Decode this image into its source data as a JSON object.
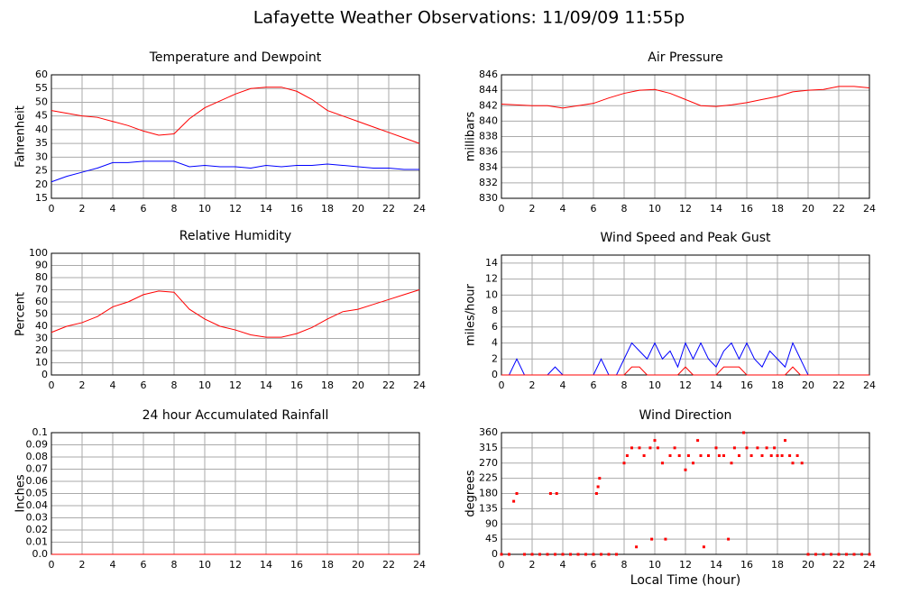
{
  "title": "Lafayette Weather Observations: 11/09/09 11:55p",
  "chart_data": [
    {
      "type": "line",
      "title": "Temperature and Dewpoint",
      "ylabel": "Fahrenheit",
      "x": [
        0,
        1,
        2,
        3,
        4,
        5,
        6,
        7,
        8,
        9,
        10,
        11,
        12,
        13,
        14,
        15,
        16,
        17,
        18,
        19,
        20,
        21,
        22,
        23,
        24
      ],
      "series": [
        {
          "color": "#ff0000",
          "values": [
            47,
            46,
            45,
            44.5,
            43,
            41.5,
            39.5,
            38,
            38.5,
            44,
            48,
            50.5,
            53,
            55,
            55.5,
            55.5,
            54,
            51,
            47,
            45,
            43,
            41,
            39,
            37,
            35
          ]
        },
        {
          "color": "#0000ff",
          "values": [
            21,
            23,
            24.5,
            26,
            28,
            28,
            28.5,
            28.5,
            28.5,
            26.5,
            27,
            26.5,
            26.5,
            26,
            27,
            26.5,
            27,
            27,
            27.5,
            27,
            26.5,
            26,
            26,
            25.5,
            25.5
          ]
        }
      ],
      "xlim": [
        0,
        24
      ],
      "xticks": [
        0,
        2,
        4,
        6,
        8,
        10,
        12,
        14,
        16,
        18,
        20,
        22,
        24
      ],
      "ylim": [
        15,
        60
      ],
      "yticks": [
        15,
        20,
        25,
        30,
        35,
        40,
        45,
        50,
        55,
        60
      ],
      "grid": true
    },
    {
      "type": "line",
      "title": "Air Pressure",
      "ylabel": "millibars",
      "x": [
        0,
        1,
        2,
        3,
        4,
        5,
        6,
        7,
        8,
        9,
        10,
        11,
        12,
        13,
        14,
        15,
        16,
        17,
        18,
        19,
        20,
        21,
        22,
        23,
        24
      ],
      "series": [
        {
          "color": "#ff0000",
          "values": [
            842.2,
            842.1,
            842,
            842,
            841.7,
            842,
            842.3,
            843,
            843.6,
            844,
            844.1,
            843.6,
            842.8,
            842,
            841.9,
            842.1,
            842.4,
            842.8,
            843.2,
            843.8,
            844,
            844.1,
            844.5,
            844.5,
            844.3
          ]
        }
      ],
      "xlim": [
        0,
        24
      ],
      "xticks": [
        0,
        2,
        4,
        6,
        8,
        10,
        12,
        14,
        16,
        18,
        20,
        22,
        24
      ],
      "ylim": [
        830,
        846
      ],
      "yticks": [
        830,
        832,
        834,
        836,
        838,
        840,
        842,
        844,
        846
      ],
      "grid": true
    },
    {
      "type": "line",
      "title": "Relative Humidity",
      "ylabel": "Percent",
      "x": [
        0,
        1,
        2,
        3,
        4,
        5,
        6,
        7,
        8,
        9,
        10,
        11,
        12,
        13,
        14,
        15,
        16,
        17,
        18,
        19,
        20,
        21,
        22,
        23,
        24
      ],
      "series": [
        {
          "color": "#ff0000",
          "values": [
            35,
            40,
            43,
            48,
            56,
            60,
            66,
            69,
            68,
            54,
            46,
            40,
            37,
            33,
            31,
            31,
            34,
            39,
            46,
            52,
            54,
            58,
            62,
            66,
            70
          ]
        }
      ],
      "xlim": [
        0,
        24
      ],
      "xticks": [
        0,
        2,
        4,
        6,
        8,
        10,
        12,
        14,
        16,
        18,
        20,
        22,
        24
      ],
      "ylim": [
        0,
        100
      ],
      "yticks": [
        0,
        10,
        20,
        30,
        40,
        50,
        60,
        70,
        80,
        90,
        100
      ],
      "grid": true
    },
    {
      "type": "line",
      "title": "Wind Speed and Peak Gust",
      "ylabel": "miles/hour",
      "x": [
        0,
        0.5,
        1,
        1.5,
        2,
        2.5,
        3,
        3.5,
        4,
        4.5,
        5,
        5.5,
        6,
        6.5,
        7,
        7.5,
        8,
        8.5,
        9,
        9.5,
        10,
        10.5,
        11,
        11.5,
        12,
        12.5,
        13,
        13.5,
        14,
        14.5,
        15,
        15.5,
        16,
        16.5,
        17,
        17.5,
        18,
        18.5,
        19,
        19.5,
        20,
        20.5,
        21,
        21.5,
        22,
        22.5,
        23,
        23.5,
        24
      ],
      "series": [
        {
          "color": "#0000ff",
          "values": [
            0,
            0,
            2,
            0,
            0,
            0,
            0,
            1,
            0,
            0,
            0,
            0,
            0,
            2,
            0,
            0,
            2,
            4,
            3,
            2,
            4,
            2,
            3,
            1,
            4,
            2,
            4,
            2,
            1,
            3,
            4,
            2,
            4,
            2,
            1,
            3,
            2,
            1,
            4,
            2,
            0,
            0,
            0,
            0,
            0,
            0,
            0,
            0,
            0
          ]
        },
        {
          "color": "#ff0000",
          "values": [
            0,
            0,
            0,
            0,
            0,
            0,
            0,
            0,
            0,
            0,
            0,
            0,
            0,
            0,
            0,
            0,
            0,
            1,
            1,
            0,
            0,
            0,
            0,
            0,
            1,
            0,
            0,
            0,
            0,
            1,
            1,
            1,
            0,
            0,
            0,
            0,
            0,
            0,
            1,
            0,
            0,
            0,
            0,
            0,
            0,
            0,
            0,
            0,
            0
          ]
        }
      ],
      "xlim": [
        0,
        24
      ],
      "xticks": [
        0,
        2,
        4,
        6,
        8,
        10,
        12,
        14,
        16,
        18,
        20,
        22,
        24
      ],
      "ylim": [
        0,
        15
      ],
      "yticks": [
        0,
        2,
        4,
        6,
        8,
        10,
        12,
        14
      ],
      "grid": true
    },
    {
      "type": "line",
      "title": "24 hour Accumulated Rainfall",
      "ylabel": "Inches",
      "x": [
        0,
        24
      ],
      "series": [
        {
          "color": "#ff0000",
          "values": [
            0,
            0
          ]
        }
      ],
      "xlim": [
        0,
        24
      ],
      "xticks": [
        0,
        2,
        4,
        6,
        8,
        10,
        12,
        14,
        16,
        18,
        20,
        22,
        24
      ],
      "ylim": [
        0,
        0.1
      ],
      "yticks": [
        {
          "value": 0,
          "label": "0.0"
        },
        0.01,
        0.02,
        0.03,
        0.04,
        0.05,
        0.06,
        0.07,
        0.08,
        0.09,
        0.1
      ],
      "grid": true
    },
    {
      "type": "scatter",
      "title": "Wind Direction",
      "ylabel": "degrees",
      "xlabel": "Local Time (hour)",
      "x": [
        0,
        0.5,
        0.8,
        1,
        1.5,
        2,
        2.5,
        3,
        3.2,
        3.5,
        3.6,
        4,
        4.5,
        5,
        5.5,
        6,
        6.2,
        6.3,
        6.4,
        6.5,
        7,
        7.5,
        8,
        8.2,
        8.5,
        8.8,
        9,
        9.3,
        9.7,
        9.8,
        10,
        10.2,
        10.5,
        10.7,
        11,
        11.3,
        11.6,
        12,
        12.2,
        12.5,
        12.8,
        13,
        13.2,
        13.5,
        14,
        14.2,
        14.5,
        14.8,
        15,
        15.2,
        15.5,
        15.8,
        16,
        16.3,
        16.7,
        17,
        17.3,
        17.6,
        17.8,
        18,
        18.3,
        18.5,
        18.8,
        19,
        19.3,
        19.6,
        20,
        20.5,
        21,
        21.5,
        22,
        22.5,
        23,
        23.5,
        24
      ],
      "values": [
        0,
        0,
        157,
        180,
        0,
        0,
        0,
        0,
        180,
        0,
        180,
        0,
        0,
        0,
        0,
        0,
        180,
        200,
        225,
        0,
        0,
        0,
        270,
        292,
        315,
        22,
        315,
        292,
        315,
        45,
        337,
        315,
        270,
        45,
        292,
        315,
        292,
        250,
        292,
        270,
        337,
        292,
        22,
        292,
        315,
        292,
        292,
        45,
        270,
        315,
        292,
        360,
        315,
        292,
        315,
        292,
        315,
        292,
        315,
        292,
        292,
        337,
        292,
        270,
        292,
        270,
        0,
        0,
        0,
        0,
        0,
        0,
        0,
        0,
        0
      ],
      "color": "#ff0000",
      "xlim": [
        0,
        24
      ],
      "xticks": [
        0,
        2,
        4,
        6,
        8,
        10,
        12,
        14,
        16,
        18,
        20,
        22,
        24
      ],
      "ylim": [
        0,
        360
      ],
      "yticks": [
        0,
        45,
        90,
        135,
        180,
        225,
        270,
        315,
        360
      ],
      "grid": true
    }
  ]
}
